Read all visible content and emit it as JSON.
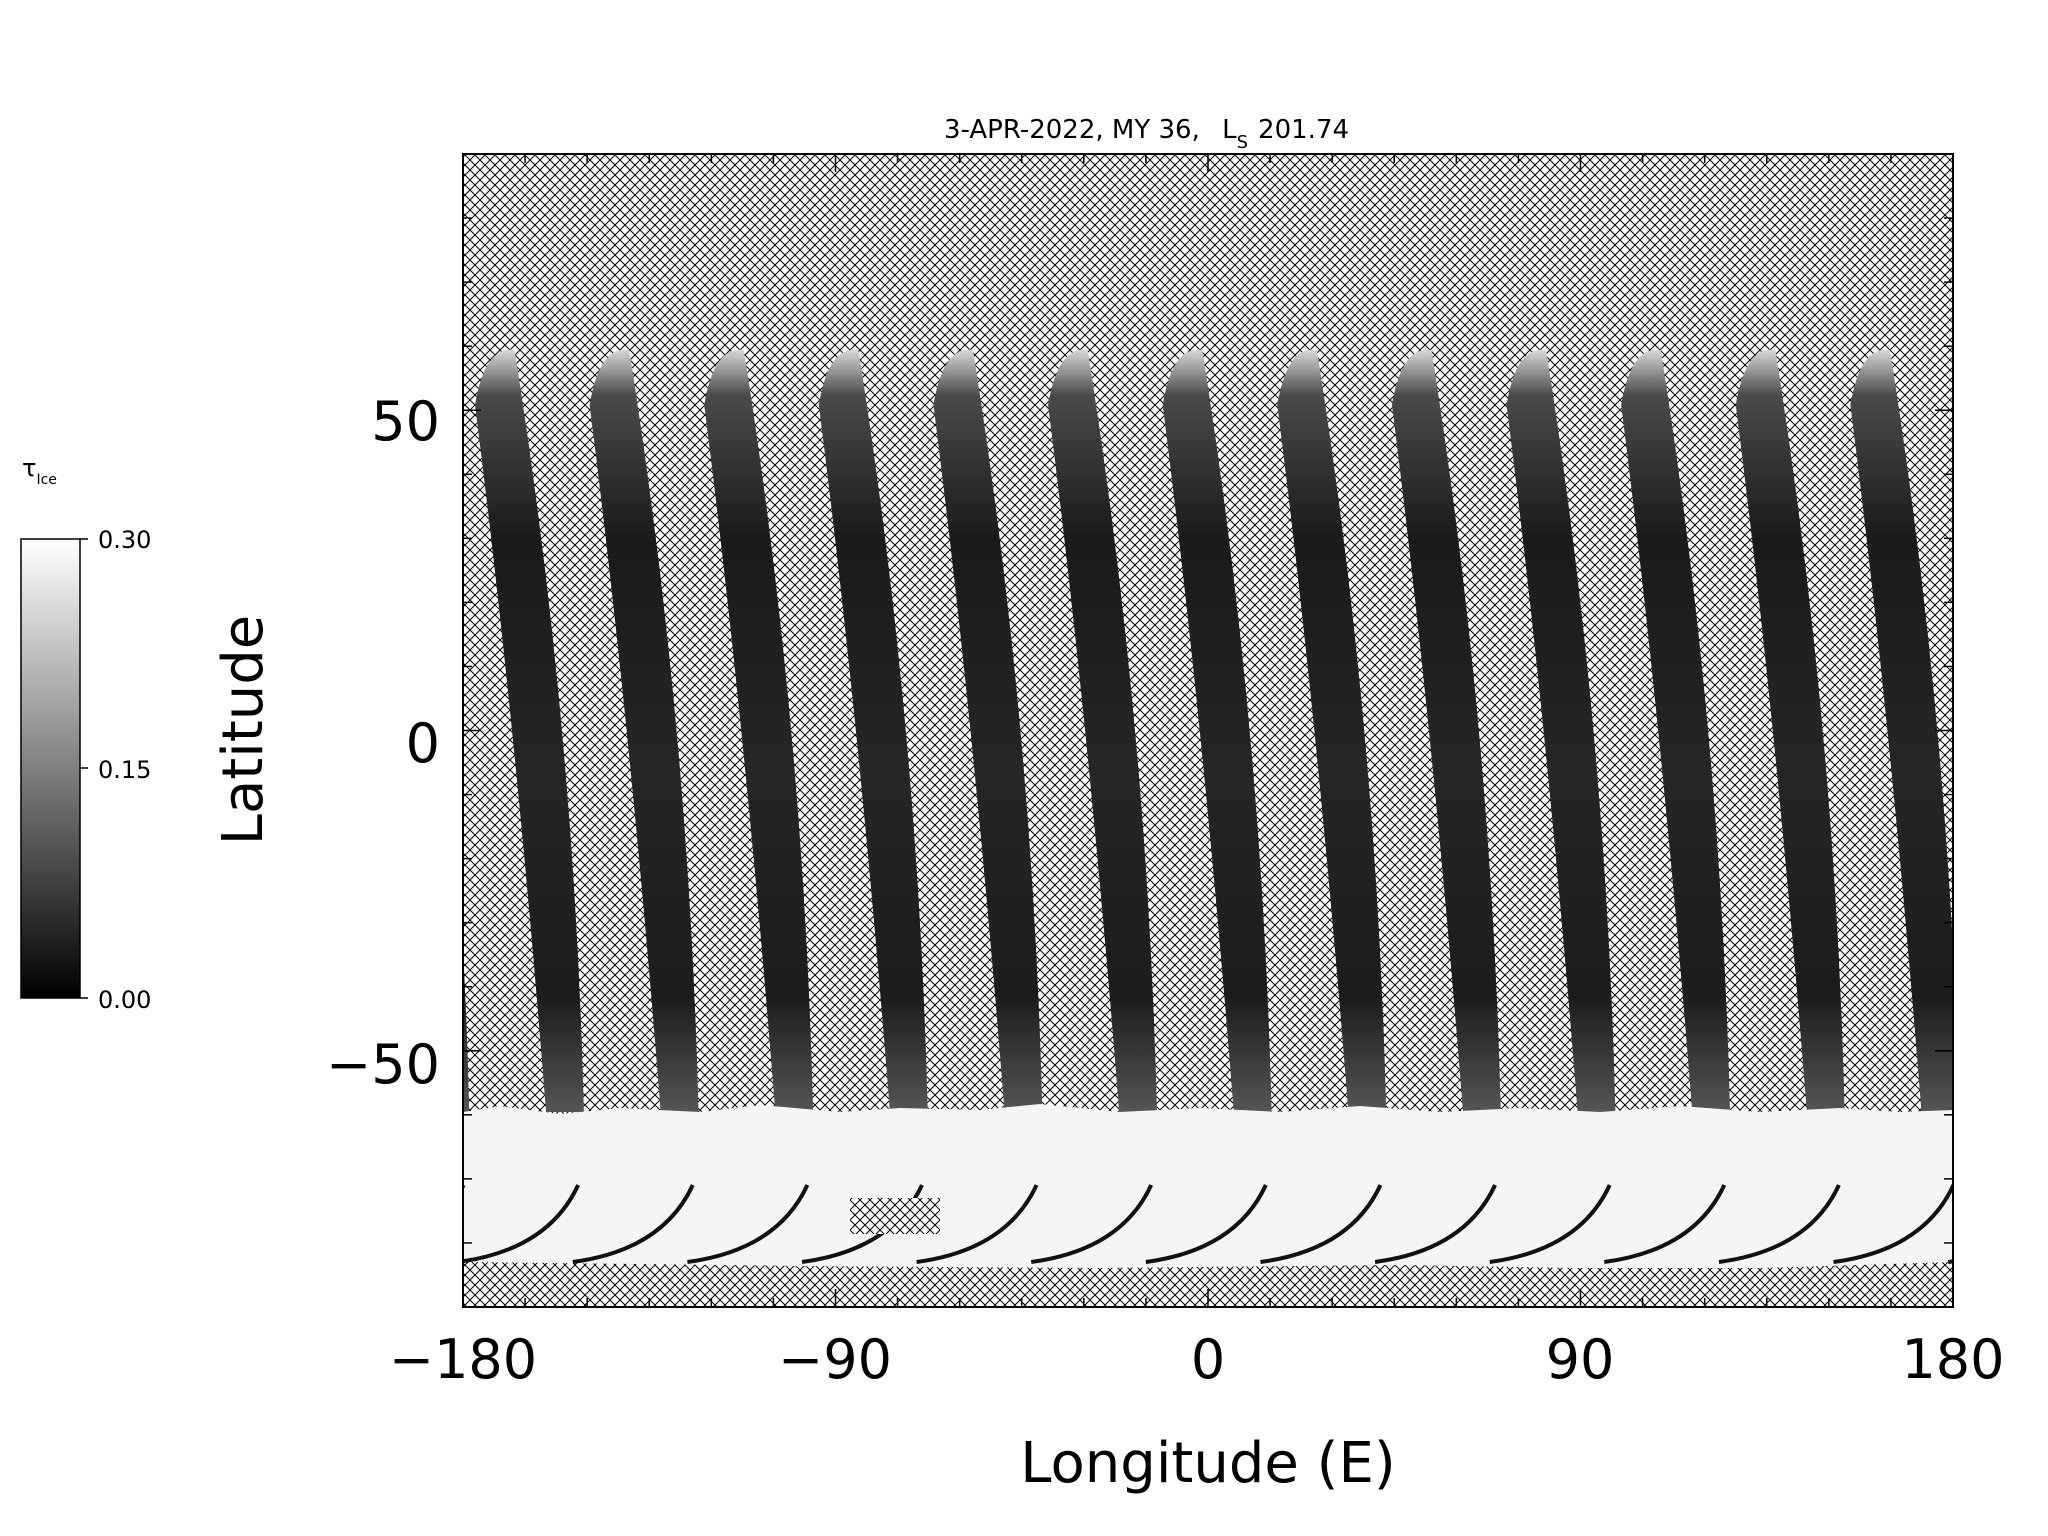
{
  "title": {
    "date": "3-APR-2022, MY 36,",
    "ls_main": "L",
    "ls_sub": "S",
    "ls_value": "201.74"
  },
  "axes": {
    "x_label": "Longitude (E)",
    "y_label": "Latitude",
    "x_ticks": [
      "−180",
      "−90",
      "0",
      "90",
      "180"
    ],
    "y_ticks": [
      "50",
      "0",
      "−50"
    ],
    "x_range": [
      -180,
      180
    ],
    "y_range": [
      -90,
      90
    ]
  },
  "colorbar": {
    "symbol": "τ",
    "subscript": "Ice",
    "ticks": [
      "0.30",
      "0.15",
      "0.00"
    ],
    "range": [
      0.0,
      0.3
    ]
  },
  "map": {
    "swath_count": 13,
    "no_data_fill": "crosshatch",
    "polar_cap_color": "#f6f6f6",
    "swath_color": "#202020"
  }
}
